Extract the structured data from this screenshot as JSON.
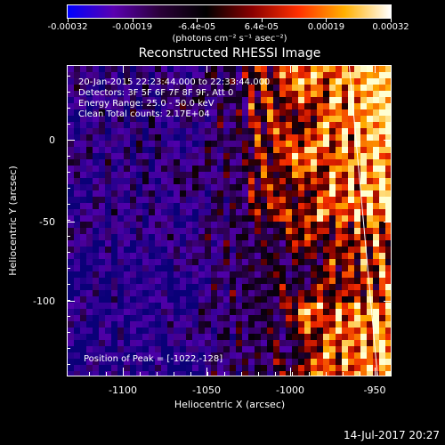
{
  "colorbar": {
    "labels": [
      "-0.00032",
      "-0.00019",
      "-6.4e-05",
      "6.4e-05",
      "0.00019",
      "0.00032"
    ],
    "units": "(photons cm⁻² s⁻¹ asec⁻²)",
    "colors": [
      "#0000ff",
      "#5a00b0",
      "#2a0038",
      "#000000",
      "#8a0000",
      "#ff3000",
      "#ffb000",
      "#ffffff"
    ]
  },
  "title": "Reconstructed RHESSI Image",
  "annotations": {
    "time_range": "20-Jan-2015 22:23:44.000 to 22:33:44.000",
    "detectors": "Detectors: 3F 5F 6F 7F 8F 9F, Att 0",
    "energy": "Energy Range: 25.0 - 50.0 keV",
    "clean": "Clean     Total counts: 2.17E+04",
    "peak": "Position of Peak = [-1022,-128]"
  },
  "axes": {
    "xlabel": "Heliocentric X (arcsec)",
    "ylabel": "Heliocentric Y (arcsec)",
    "xticks": [
      "-1100",
      "-1050",
      "-1000",
      "-950"
    ],
    "yticks": [
      "0",
      "-50",
      "-100"
    ]
  },
  "footer": "14-Jul-2017 20:27",
  "chart_data": {
    "type": "heatmap",
    "title": "Reconstructed RHESSI Image",
    "xlabel": "Heliocentric X (arcsec)",
    "ylabel": "Heliocentric Y (arcsec)",
    "xlim": [
      -1145,
      -950
    ],
    "ylim": [
      -150,
      37
    ],
    "zlim": [
      -0.00032,
      0.00032
    ],
    "peak": [
      -1022,
      -128
    ],
    "limb": [
      [
        -975,
        37
      ],
      [
        -958,
        -150
      ]
    ]
  }
}
